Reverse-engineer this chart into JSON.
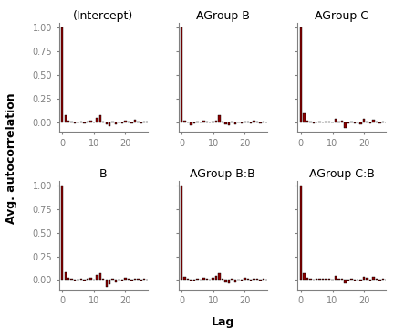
{
  "titles": [
    "(Intercept)",
    "AGroup B",
    "AGroup C",
    "B",
    "AGroup B:B",
    "AGroup C:B"
  ],
  "ylabel": "Avg. autocorrelation",
  "xlabel": "Lag",
  "ylim": [
    -0.1,
    1.05
  ],
  "xlim": [
    -1,
    27
  ],
  "bar_color": "#8B0000",
  "bar_edge_color": "#000000",
  "background_color": "#FFFFFF",
  "panel_background": "#FFFFFF",
  "n_lags": 27,
  "panels": [
    [
      1.0,
      0.08,
      0.02,
      0.01,
      -0.01,
      0.0,
      0.01,
      -0.01,
      0.01,
      0.02,
      0.0,
      0.05,
      0.08,
      0.01,
      -0.02,
      -0.04,
      0.01,
      -0.02,
      0.0,
      -0.01,
      0.02,
      0.01,
      -0.01,
      0.03,
      0.01,
      -0.01,
      0.01,
      0.01
    ],
    [
      1.0,
      0.02,
      0.0,
      -0.03,
      -0.01,
      0.01,
      0.0,
      0.02,
      0.01,
      0.0,
      0.01,
      0.02,
      0.08,
      0.01,
      -0.02,
      -0.03,
      0.01,
      -0.02,
      0.0,
      -0.01,
      0.01,
      0.01,
      -0.01,
      0.02,
      0.01,
      -0.01,
      0.01,
      0.0
    ],
    [
      1.0,
      0.1,
      0.02,
      0.01,
      -0.01,
      0.0,
      0.01,
      0.0,
      0.01,
      0.01,
      0.0,
      0.04,
      0.01,
      0.02,
      -0.06,
      -0.01,
      0.01,
      -0.01,
      0.0,
      -0.02,
      0.04,
      0.01,
      -0.01,
      0.03,
      0.01,
      -0.01,
      0.01,
      0.0
    ],
    [
      1.0,
      0.08,
      0.02,
      0.01,
      -0.01,
      0.0,
      0.01,
      -0.01,
      0.01,
      0.02,
      0.0,
      0.05,
      0.07,
      0.01,
      -0.07,
      -0.04,
      0.01,
      -0.02,
      0.0,
      -0.01,
      0.02,
      0.01,
      -0.01,
      0.01,
      0.01,
      -0.01,
      0.01,
      0.0
    ],
    [
      1.0,
      0.03,
      0.01,
      -0.01,
      -0.01,
      0.01,
      0.0,
      0.02,
      0.01,
      0.0,
      0.02,
      0.04,
      0.07,
      0.01,
      -0.02,
      -0.03,
      0.01,
      -0.02,
      0.0,
      -0.01,
      0.02,
      0.01,
      -0.01,
      0.01,
      0.01,
      -0.01,
      0.01,
      0.0
    ],
    [
      1.0,
      0.07,
      0.02,
      0.01,
      0.0,
      0.01,
      0.01,
      0.01,
      0.01,
      0.01,
      0.0,
      0.04,
      0.01,
      0.01,
      -0.03,
      -0.01,
      0.01,
      -0.01,
      0.0,
      -0.01,
      0.03,
      0.02,
      -0.01,
      0.03,
      0.01,
      -0.01,
      0.01,
      0.0
    ]
  ],
  "tick_fontsize": 7,
  "label_fontsize": 9,
  "title_fontsize": 9
}
